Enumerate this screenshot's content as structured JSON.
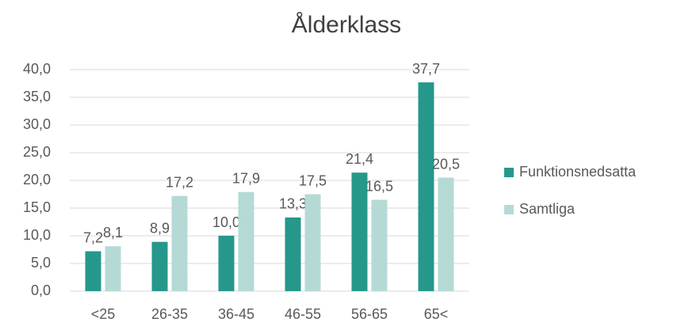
{
  "chart_data": {
    "type": "bar",
    "title": "Ålderklass",
    "categories": [
      "<25",
      "26-35",
      "36-45",
      "46-55",
      "56-65",
      "65<"
    ],
    "series": [
      {
        "name": "Funktionsnedsatta",
        "color": "#25988b",
        "values": [
          7.2,
          8.9,
          10.0,
          13.3,
          21.4,
          37.7
        ],
        "value_labels": [
          "7,2",
          "8,9",
          "10,0",
          "13,3",
          "21,4",
          "37,7"
        ]
      },
      {
        "name": "Samtliga",
        "color": "#b5dad5",
        "values": [
          8.1,
          17.2,
          17.9,
          17.5,
          16.5,
          20.5
        ],
        "value_labels": [
          "8,1",
          "17,2",
          "17,9",
          "17,5",
          "16,5",
          "20,5"
        ]
      }
    ],
    "ylim": [
      0,
      40
    ],
    "yticks": [
      {
        "value": 0,
        "label": "0,0"
      },
      {
        "value": 5,
        "label": "5,0"
      },
      {
        "value": 10,
        "label": "10,0"
      },
      {
        "value": 15,
        "label": "15,0"
      },
      {
        "value": 20,
        "label": "20,0"
      },
      {
        "value": 25,
        "label": "25,0"
      },
      {
        "value": 30,
        "label": "30,0"
      },
      {
        "value": 35,
        "label": "35,0"
      },
      {
        "value": 40,
        "label": "40,0"
      }
    ],
    "grid": true,
    "legend": "right"
  }
}
